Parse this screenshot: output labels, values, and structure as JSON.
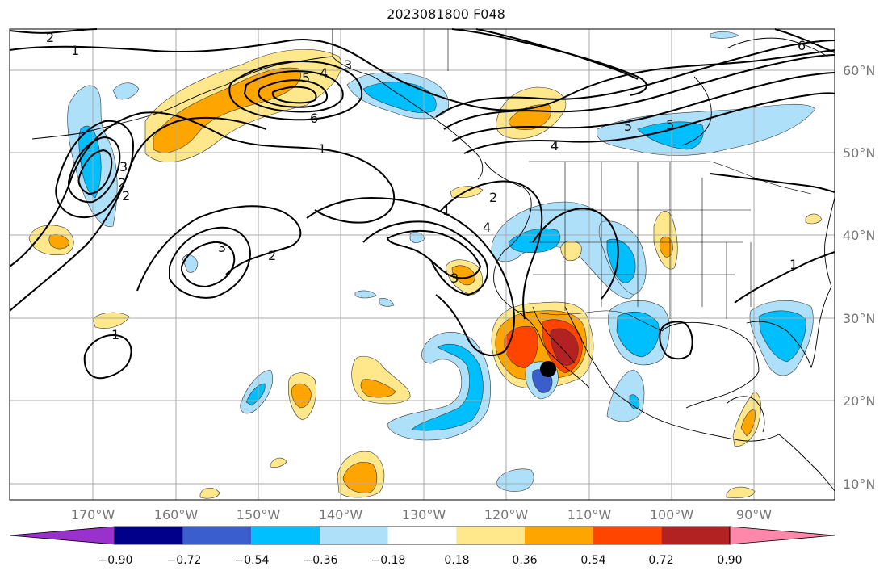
{
  "title": "2023081800 F048",
  "map": {
    "lon_ticks": [
      "170°W",
      "160°W",
      "150°W",
      "140°W",
      "130°W",
      "120°W",
      "110°W",
      "100°W",
      "90°W"
    ],
    "lat_ticks": [
      "60°N",
      "50°N",
      "40°N",
      "30°N",
      "20°N",
      "10°N"
    ],
    "contour_labels": [
      "2",
      "1",
      "3",
      "4",
      "5",
      "6",
      "1",
      "4",
      "5",
      "5",
      "6",
      "3",
      "2",
      "2",
      "1",
      "2",
      "4",
      "3",
      "2",
      "3",
      "1",
      "1"
    ]
  },
  "colorbar": {
    "tick_labels": [
      "−0.90",
      "−0.72",
      "−0.54",
      "−0.36",
      "−0.18",
      "0.18",
      "0.36",
      "0.54",
      "0.72",
      "0.90"
    ],
    "colors": [
      "#9932cc",
      "#00008b",
      "#3a5fcd",
      "#00bfff",
      "#afe0fa",
      "#ffffff",
      "#ffe88c",
      "#ffa500",
      "#ff4500",
      "#b22222",
      "#ff88aa"
    ]
  },
  "colors": {
    "grid": "#aaaaaa",
    "contour": "#000000",
    "marker": "#000000"
  }
}
